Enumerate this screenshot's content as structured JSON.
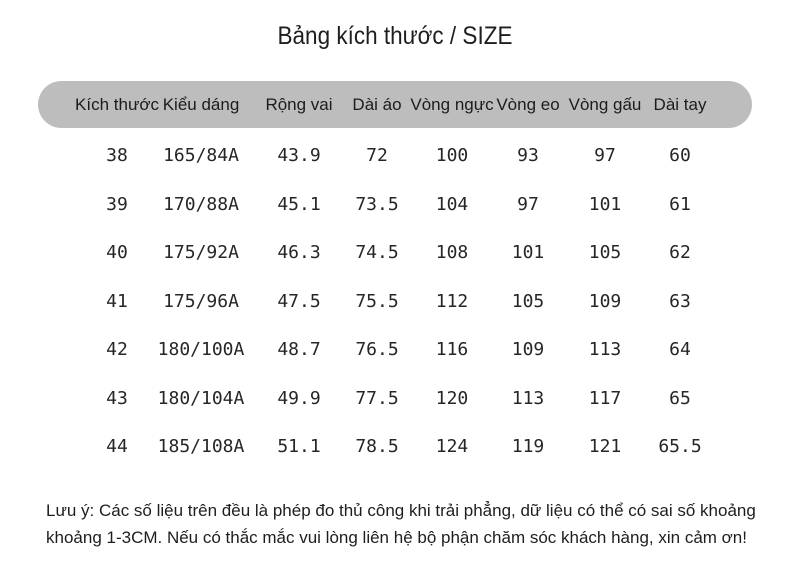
{
  "title": "Bảng kích thước / SIZE",
  "table": {
    "headers": [
      "Kích thước",
      "Kiểu dáng",
      "Rộng vai",
      "Dài áo",
      "Vòng ngực",
      "Vòng eo",
      "Vòng gấu",
      "Dài tay"
    ],
    "rows": [
      [
        "38",
        "165/84A",
        "43.9",
        "72",
        "100",
        "93",
        "97",
        "60"
      ],
      [
        "39",
        "170/88A",
        "45.1",
        "73.5",
        "104",
        "97",
        "101",
        "61"
      ],
      [
        "40",
        "175/92A",
        "46.3",
        "74.5",
        "108",
        "101",
        "105",
        "62"
      ],
      [
        "41",
        "175/96A",
        "47.5",
        "75.5",
        "112",
        "105",
        "109",
        "63"
      ],
      [
        "42",
        "180/100A",
        "48.7",
        "76.5",
        "116",
        "109",
        "113",
        "64"
      ],
      [
        "43",
        "180/104A",
        "49.9",
        "77.5",
        "120",
        "113",
        "117",
        "65"
      ],
      [
        "44",
        "185/108A",
        "51.1",
        "78.5",
        "124",
        "119",
        "121",
        "65.5"
      ]
    ]
  },
  "note": {
    "line1": "Lưu ý: Các số liệu trên đều là phép đo thủ công khi trải phẳng, dữ liệu có thể có sai số khoảng",
    "line2": "khoảng 1-3CM. Nếu có thắc mắc vui lòng liên hệ bộ phận chăm sóc khách hàng, xin cảm ơn!"
  },
  "colors": {
    "header_bar": "#bdbdbd",
    "text": "#222222",
    "background": "#ffffff"
  }
}
